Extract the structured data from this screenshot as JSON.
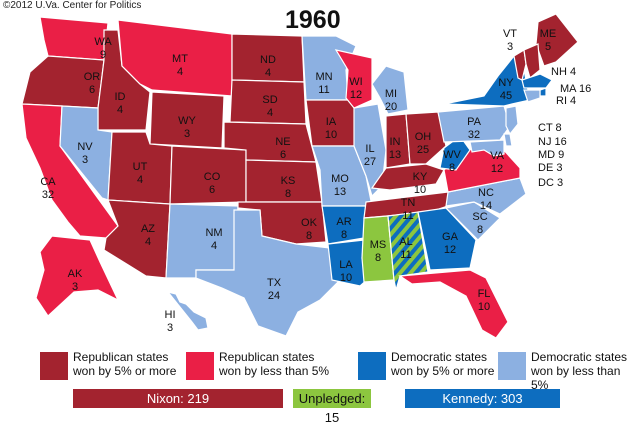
{
  "copyright": "©2012 U.Va. Center for Politics",
  "title": "1960",
  "colors": {
    "rep_solid": "#A3232F",
    "rep_lean": "#EA1F46",
    "dem_solid": "#0D6DBF",
    "dem_lean": "#8CB0E1",
    "unpledged": "#8CC63F",
    "border": "#ffffff"
  },
  "states": [
    {
      "abbr": "WA",
      "ev": "9",
      "win": "rep_lean"
    },
    {
      "abbr": "OR",
      "ev": "6",
      "win": "rep_solid"
    },
    {
      "abbr": "CA",
      "ev": "32",
      "win": "rep_lean"
    },
    {
      "abbr": "ID",
      "ev": "4",
      "win": "rep_solid"
    },
    {
      "abbr": "NV",
      "ev": "3",
      "win": "dem_lean"
    },
    {
      "abbr": "MT",
      "ev": "4",
      "win": "rep_lean"
    },
    {
      "abbr": "WY",
      "ev": "3",
      "win": "rep_solid"
    },
    {
      "abbr": "UT",
      "ev": "4",
      "win": "rep_solid"
    },
    {
      "abbr": "AZ",
      "ev": "4",
      "win": "rep_solid"
    },
    {
      "abbr": "CO",
      "ev": "6",
      "win": "rep_solid"
    },
    {
      "abbr": "NM",
      "ev": "4",
      "win": "dem_lean"
    },
    {
      "abbr": "ND",
      "ev": "4",
      "win": "rep_solid"
    },
    {
      "abbr": "SD",
      "ev": "4",
      "win": "rep_solid"
    },
    {
      "abbr": "NE",
      "ev": "6",
      "win": "rep_solid"
    },
    {
      "abbr": "KS",
      "ev": "8",
      "win": "rep_solid"
    },
    {
      "abbr": "OK",
      "ev": "8",
      "win": "rep_solid"
    },
    {
      "abbr": "TX",
      "ev": "24",
      "win": "dem_lean"
    },
    {
      "abbr": "MN",
      "ev": "11",
      "win": "dem_lean"
    },
    {
      "abbr": "IA",
      "ev": "10",
      "win": "rep_solid"
    },
    {
      "abbr": "MO",
      "ev": "13",
      "win": "dem_lean"
    },
    {
      "abbr": "AR",
      "ev": "8",
      "win": "dem_solid"
    },
    {
      "abbr": "LA",
      "ev": "10",
      "win": "dem_solid"
    },
    {
      "abbr": "WI",
      "ev": "12",
      "win": "rep_lean"
    },
    {
      "abbr": "IL",
      "ev": "27",
      "win": "dem_lean"
    },
    {
      "abbr": "MI",
      "ev": "20",
      "win": "dem_lean"
    },
    {
      "abbr": "IN",
      "ev": "13",
      "win": "rep_solid"
    },
    {
      "abbr": "OH",
      "ev": "25",
      "win": "rep_solid"
    },
    {
      "abbr": "KY",
      "ev": "10",
      "win": "rep_solid"
    },
    {
      "abbr": "TN",
      "ev": "11",
      "win": "rep_solid"
    },
    {
      "abbr": "MS",
      "ev": "8",
      "win": "unpledged"
    },
    {
      "abbr": "AL",
      "ev": "11",
      "win": "dem_solid"
    },
    {
      "abbr": "GA",
      "ev": "12",
      "win": "dem_solid"
    },
    {
      "abbr": "FL",
      "ev": "10",
      "win": "rep_lean"
    },
    {
      "abbr": "SC",
      "ev": "8",
      "win": "dem_lean"
    },
    {
      "abbr": "NC",
      "ev": "14",
      "win": "dem_lean"
    },
    {
      "abbr": "VA",
      "ev": "12",
      "win": "rep_lean"
    },
    {
      "abbr": "WV",
      "ev": "8",
      "win": "dem_solid"
    },
    {
      "abbr": "PA",
      "ev": "32",
      "win": "dem_lean"
    },
    {
      "abbr": "NY",
      "ev": "45",
      "win": "dem_solid"
    },
    {
      "abbr": "ME",
      "ev": "5",
      "win": "rep_solid"
    },
    {
      "abbr": "AK",
      "ev": "3",
      "win": "rep_lean"
    },
    {
      "abbr": "HI",
      "ev": "3",
      "win": "dem_lean"
    }
  ],
  "callouts": [
    {
      "abbr": "VT",
      "ev": "3",
      "win": "rep_solid"
    },
    {
      "abbr": "NH",
      "ev": "4",
      "win": "rep_solid"
    },
    {
      "abbr": "MA",
      "ev": "16",
      "win": "dem_solid"
    },
    {
      "abbr": "RI",
      "ev": "4",
      "win": "dem_solid"
    },
    {
      "abbr": "CT",
      "ev": "8",
      "win": "dem_lean"
    },
    {
      "abbr": "NJ",
      "ev": "16",
      "win": "dem_lean"
    },
    {
      "abbr": "MD",
      "ev": "9",
      "win": "dem_lean"
    },
    {
      "abbr": "DE",
      "ev": "3",
      "win": "dem_lean"
    },
    {
      "abbr": "DC",
      "ev": "3",
      "win": "none"
    }
  ],
  "legend": [
    {
      "key": "rep_solid",
      "line1": "Republican states",
      "line2": "won by 5% or more"
    },
    {
      "key": "rep_lean",
      "line1": "Republican states",
      "line2": "won by less than 5%"
    },
    {
      "key": "dem_solid",
      "line1": "Democratic states",
      "line2": "won by 5% or more"
    },
    {
      "key": "dem_lean",
      "line1": "Democratic states",
      "line2": "won by less than 5%"
    }
  ],
  "totals": [
    {
      "label": "Nixon: 219",
      "color": "#A3232F",
      "text_color": "#ffffff"
    },
    {
      "label": "Unpledged: 15",
      "color": "#8CC63F",
      "text_color": "#111111"
    },
    {
      "label": "Kennedy: 303",
      "color": "#0D6DBF",
      "text_color": "#ffffff"
    }
  ]
}
